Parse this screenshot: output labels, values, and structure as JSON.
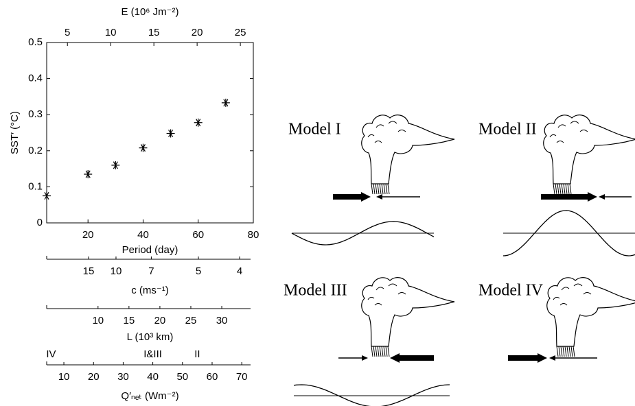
{
  "chart_data": {
    "type": "scatter",
    "x": [
      5,
      20,
      30,
      40,
      50,
      60,
      70
    ],
    "values": [
      0.075,
      0.135,
      0.16,
      0.208,
      0.248,
      0.278,
      0.333
    ],
    "marker": "asterisk",
    "color": "#000000",
    "xlabel": "Period (day)",
    "ylabel": "SST′ (°C)",
    "xlim": [
      5,
      80
    ],
    "xticks": [
      20,
      40,
      60,
      80
    ],
    "ylim": [
      0,
      0.5
    ],
    "yticks": [
      0,
      0.1,
      0.2,
      0.3,
      0.4,
      0.5
    ],
    "top_axis": {
      "label": "E (10⁶ Jm⁻²)",
      "scale": "linear",
      "lim": [
        2.6,
        26.5
      ],
      "ticks": [
        5,
        10,
        15,
        20,
        25
      ]
    },
    "extra_axes": [
      {
        "label": "c (ms⁻¹)",
        "scale": "reciprocal",
        "lim": [
          63,
          3.75
        ],
        "ticks": [
          15,
          10,
          7,
          5,
          4
        ]
      },
      {
        "label": "L (10³ km)",
        "scale": "linear",
        "lim": [
          1.7,
          35.1
        ],
        "ticks": [
          10,
          15,
          20,
          25,
          30
        ]
      },
      {
        "label": "Q′ₙₑₜ (Wm⁻²)",
        "scale": "linear",
        "lim": [
          4.2,
          73.9
        ],
        "ticks": [
          10,
          20,
          30,
          40,
          50,
          60,
          70
        ],
        "annotations": [
          {
            "text": "IV",
            "value": 5.7
          },
          {
            "text": "I&III",
            "value": 40
          },
          {
            "text": "II",
            "value": 55
          }
        ]
      }
    ]
  },
  "diagrams": {
    "panels": [
      {
        "title": "Model I"
      },
      {
        "title": "Model II"
      },
      {
        "title": "Model III"
      },
      {
        "title": "Model IV"
      }
    ]
  }
}
